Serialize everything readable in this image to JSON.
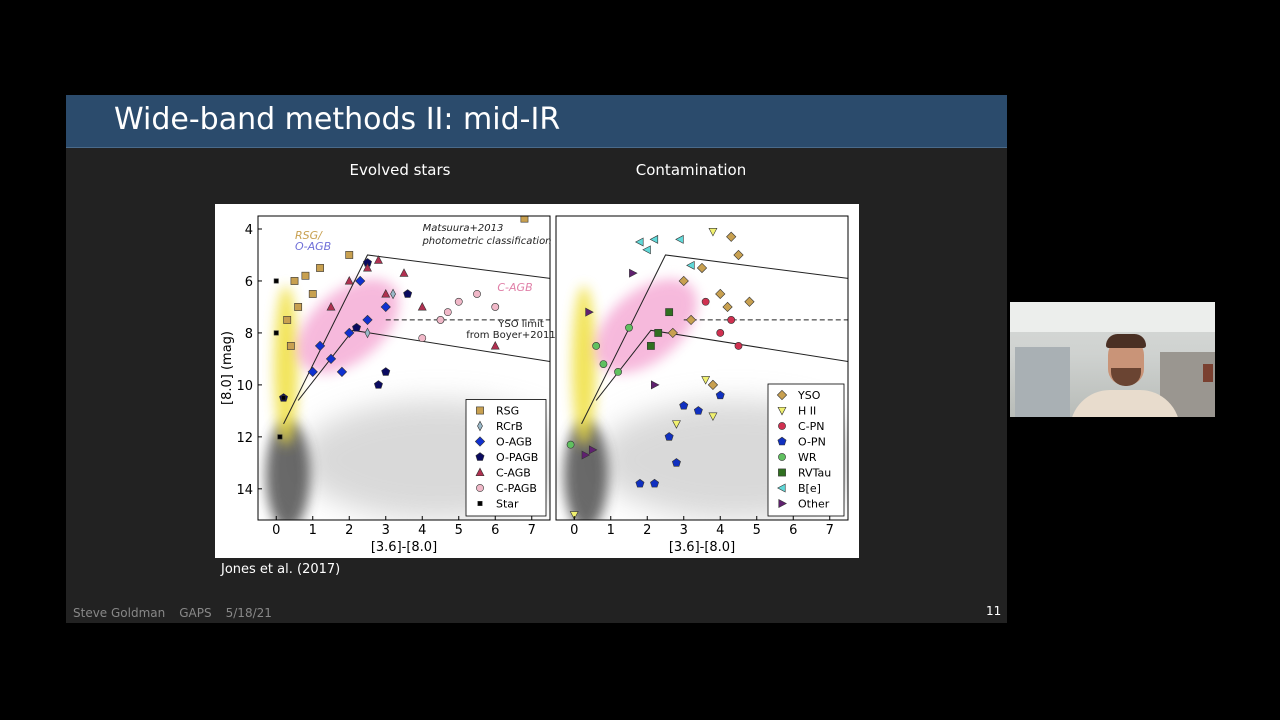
{
  "slide": {
    "title": "Wide-band methods II: mid-IR",
    "citation": "Jones et al. (2017)",
    "footer": [
      "Steve Goldman",
      "GAPS",
      "5/18/21"
    ],
    "page_number": "11"
  },
  "chart_data": [
    {
      "type": "scatter",
      "title": "Evolved stars",
      "x_label": "[3.6]-[8.0]",
      "y_label": "[8.0] (mag)",
      "xlim": [
        -0.5,
        7.5
      ],
      "ylim": [
        3.5,
        15.2
      ],
      "y_inverted": true,
      "xticks": [
        0,
        1,
        2,
        3,
        4,
        5,
        6,
        7
      ],
      "yticks": [
        4,
        6,
        8,
        10,
        12,
        14
      ],
      "legend": "lower right",
      "annotations": [
        "Matsuura+2013",
        "photometric classification",
        "RSG/",
        "O-AGB",
        "C-AGB",
        "YSO limit",
        "from Boyer+2011"
      ],
      "lines": [
        {
          "style": "solid",
          "x": [
            0.2,
            2.5,
            7.5
          ],
          "y": [
            11.5,
            5.0,
            5.9
          ]
        },
        {
          "style": "solid",
          "x": [
            0.6,
            2.1,
            7.5
          ],
          "y": [
            10.6,
            7.9,
            9.1
          ]
        },
        {
          "style": "dashed",
          "x": [
            3,
            7.5
          ],
          "y": [
            7.5,
            7.5
          ]
        }
      ],
      "series": [
        {
          "name": "RSG",
          "color": "#c8a050",
          "marker": "square",
          "x": [
            0.5,
            0.8,
            1,
            0.3,
            0.6,
            1.2,
            2,
            6.8,
            0.4
          ],
          "values": [
            6,
            5.8,
            6.5,
            7.5,
            7,
            5.5,
            5,
            3.6,
            8.5
          ]
        },
        {
          "name": "RCrB",
          "color": "#9ab8c8",
          "marker": "thin-diamond",
          "x": [
            3.2,
            2.5
          ],
          "values": [
            6.5,
            8
          ]
        },
        {
          "name": "O-AGB",
          "color": "#1030d0",
          "marker": "diamond",
          "x": [
            1.2,
            1.5,
            2,
            2.5,
            1,
            2.3,
            3,
            1.8
          ],
          "values": [
            8.5,
            9,
            8,
            7.5,
            9.5,
            6,
            7,
            9.5
          ]
        },
        {
          "name": "O-PAGB",
          "color": "#0a0a60",
          "marker": "pentagon",
          "x": [
            2.2,
            3.6,
            2.8,
            3,
            2.5,
            0.2
          ],
          "values": [
            7.8,
            6.5,
            10,
            9.5,
            5.3,
            10.5
          ]
        },
        {
          "name": "C-AGB",
          "color": "#b03050",
          "marker": "triangle",
          "x": [
            2,
            2.5,
            3,
            3.5,
            1.5,
            6,
            4,
            2.8
          ],
          "values": [
            6,
            5.5,
            6.5,
            5.7,
            7,
            8.5,
            7,
            5.2
          ]
        },
        {
          "name": "C-PAGB",
          "color": "#f0b8c8",
          "marker": "circle",
          "x": [
            4.5,
            5,
            5.5,
            4,
            6,
            4.7
          ],
          "values": [
            7.5,
            6.8,
            6.5,
            8.2,
            7,
            7.2
          ]
        },
        {
          "name": "Star",
          "color": "#000000",
          "marker": "small-square",
          "x": [
            0,
            0,
            0.2,
            0.1
          ],
          "values": [
            6,
            8,
            10.5,
            12
          ]
        }
      ]
    },
    {
      "type": "scatter",
      "title": "Contamination",
      "x_label": "[3.6]-[8.0]",
      "xlim": [
        -0.5,
        7.5
      ],
      "ylim": [
        3.5,
        15.2
      ],
      "y_inverted": true,
      "xticks": [
        0,
        1,
        2,
        3,
        4,
        5,
        6,
        7
      ],
      "legend": "lower right",
      "lines": [
        {
          "style": "solid",
          "x": [
            0.2,
            2.5,
            7.5
          ],
          "y": [
            11.5,
            5.0,
            5.9
          ]
        },
        {
          "style": "solid",
          "x": [
            0.6,
            2.1,
            7.5
          ],
          "y": [
            10.6,
            7.9,
            9.1
          ]
        },
        {
          "style": "dashed",
          "x": [
            3,
            7.5
          ],
          "y": [
            7.5,
            7.5
          ]
        }
      ],
      "series": [
        {
          "name": "YSO",
          "color": "#c8a050",
          "marker": "diamond",
          "x": [
            3,
            3.5,
            4,
            4.5,
            3.2,
            4.2,
            2.7,
            3.8,
            4.8,
            4.3
          ],
          "values": [
            6,
            5.5,
            6.5,
            5,
            7.5,
            7,
            8,
            10,
            6.8,
            4.3
          ]
        },
        {
          "name": "H II",
          "color": "#f0f070",
          "marker": "triangle-down",
          "x": [
            3.8,
            2.8,
            3.8,
            0,
            3.6
          ],
          "values": [
            4.1,
            11.5,
            11.2,
            15,
            9.8
          ]
        },
        {
          "name": "C-PN",
          "color": "#d03050",
          "marker": "circle",
          "x": [
            4,
            4.5,
            4.3,
            3.6
          ],
          "values": [
            8,
            8.5,
            7.5,
            6.8
          ]
        },
        {
          "name": "O-PN",
          "color": "#1030c0",
          "marker": "pentagon",
          "x": [
            1.8,
            2.2,
            2.8,
            3.4,
            3,
            4,
            2.6
          ],
          "values": [
            13.8,
            13.8,
            13,
            11,
            10.8,
            10.4,
            12
          ]
        },
        {
          "name": "WR",
          "color": "#60c060",
          "marker": "circle",
          "x": [
            1.5,
            0.8,
            -0.1,
            0.6,
            1.2
          ],
          "values": [
            7.8,
            9.2,
            12.3,
            8.5,
            9.5
          ]
        },
        {
          "name": "RVTau",
          "color": "#307020",
          "marker": "square",
          "x": [
            2.3,
            2.6,
            2.1
          ],
          "values": [
            8,
            7.2,
            8.5
          ]
        },
        {
          "name": "B[e]",
          "color": "#60d8d8",
          "marker": "triangle-left",
          "x": [
            1.8,
            2,
            2.2,
            2.9,
            3.2
          ],
          "values": [
            4.5,
            4.8,
            4.4,
            4.4,
            5.4
          ]
        },
        {
          "name": "Other",
          "color": "#602070",
          "marker": "triangle-right",
          "x": [
            1.6,
            0.4,
            0.5,
            0.3,
            2.2
          ],
          "values": [
            5.7,
            7.2,
            12.5,
            12.7,
            10
          ]
        }
      ]
    }
  ]
}
